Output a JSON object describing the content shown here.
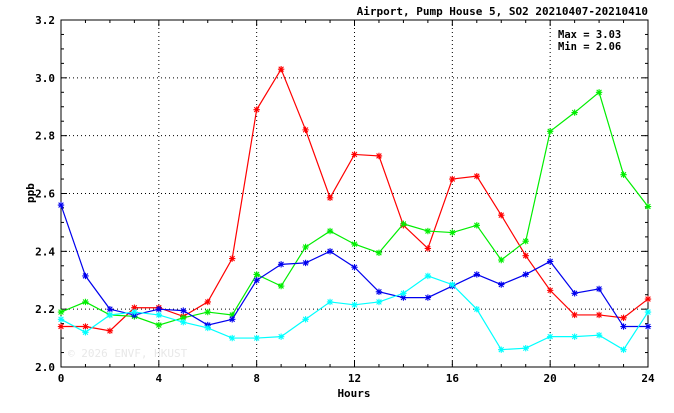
{
  "chart_data": {
    "type": "line",
    "title": "Airport, Pump House 5, SO2 20210407-20210410",
    "xlabel": "Hours",
    "ylabel": "ppb",
    "xlim": [
      0,
      24
    ],
    "ylim": [
      2.0,
      3.2
    ],
    "x_ticks": [
      0,
      4,
      8,
      12,
      16,
      20,
      24
    ],
    "y_ticks": [
      2.0,
      2.2,
      2.4,
      2.6,
      2.8,
      3.0,
      3.2
    ],
    "y_tick_labels": [
      "2.0",
      "2.2",
      "2.4",
      "2.6",
      "2.8",
      "3.0",
      "3.2"
    ],
    "grid": true,
    "grid_style": "dotted",
    "stats": {
      "max_label": "Max = 3.03",
      "min_label": "Min = 2.06"
    },
    "watermark": "© 2026  ENVF, HKUST",
    "x": [
      0,
      1,
      2,
      3,
      4,
      5,
      6,
      7,
      8,
      9,
      10,
      11,
      12,
      13,
      14,
      15,
      16,
      17,
      18,
      19,
      20,
      21,
      22,
      23,
      24
    ],
    "series": [
      {
        "color": "#ff0000",
        "values": [
          2.14,
          2.14,
          2.125,
          2.205,
          2.205,
          2.175,
          2.225,
          2.375,
          2.89,
          3.03,
          2.82,
          2.585,
          2.735,
          2.73,
          2.49,
          2.41,
          2.65,
          2.66,
          2.525,
          2.385,
          2.265,
          2.18,
          2.18,
          2.17,
          2.235
        ]
      },
      {
        "color": "#00ee00",
        "values": [
          2.19,
          2.225,
          2.18,
          2.175,
          2.145,
          2.17,
          2.19,
          2.18,
          2.32,
          2.28,
          2.415,
          2.47,
          2.425,
          2.395,
          2.495,
          2.47,
          2.465,
          2.49,
          2.37,
          2.435,
          2.815,
          2.88,
          2.95,
          2.665,
          2.555
        ]
      },
      {
        "color": "#0000ee",
        "values": [
          2.56,
          2.315,
          2.2,
          2.18,
          2.2,
          2.195,
          2.145,
          2.165,
          2.3,
          2.355,
          2.36,
          2.4,
          2.345,
          2.26,
          2.24,
          2.24,
          2.28,
          2.32,
          2.285,
          2.32,
          2.365,
          2.255,
          2.27,
          2.14,
          2.14
        ]
      },
      {
        "color": "#00ffff",
        "values": [
          2.165,
          2.12,
          2.18,
          2.19,
          2.18,
          2.155,
          2.135,
          2.1,
          2.1,
          2.105,
          2.165,
          2.225,
          2.215,
          2.225,
          2.255,
          2.315,
          2.285,
          2.2,
          2.06,
          2.065,
          2.105,
          2.105,
          2.11,
          2.06,
          2.19
        ]
      }
    ]
  }
}
